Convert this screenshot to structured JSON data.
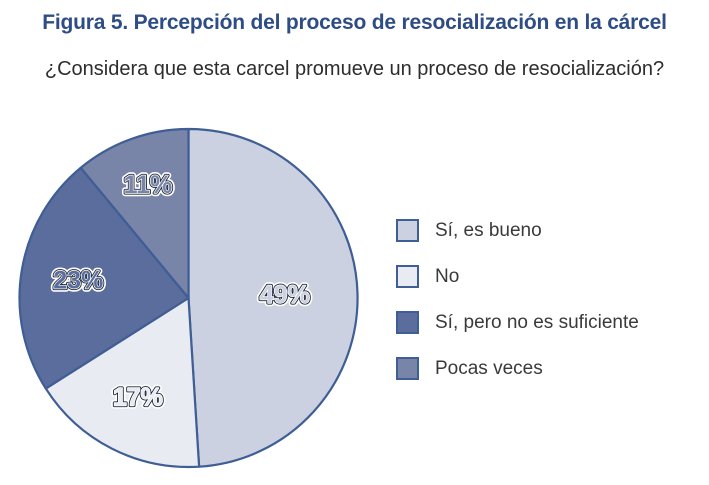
{
  "figure": {
    "title": "Figura 5. Percepción del proceso de resocialización en la cárcel",
    "question": "¿Considera que esta carcel promueve un proceso de resocialización?"
  },
  "chart_data": {
    "type": "pie",
    "title": "Percepción del proceso de resocialización en la cárcel",
    "start_angle": "12-oclock-clockwise",
    "legend_position": "right",
    "stroke_color": "#3f5e95",
    "label_outline_color": "#1b2334",
    "label_halo_color": "#ffffff",
    "slices": [
      {
        "label": "Sí, es bueno",
        "value": 49,
        "display": "49%",
        "color": "#cbd1e0"
      },
      {
        "label": "No",
        "value": 17,
        "display": "17%",
        "color": "#e9ebf3"
      },
      {
        "label": "Sí, pero no es suficiente",
        "value": 23,
        "display": "23%",
        "color": "#5a6d9c"
      },
      {
        "label": "Pocas veces",
        "value": 11,
        "display": "11%",
        "color": "#7884a8"
      }
    ]
  }
}
